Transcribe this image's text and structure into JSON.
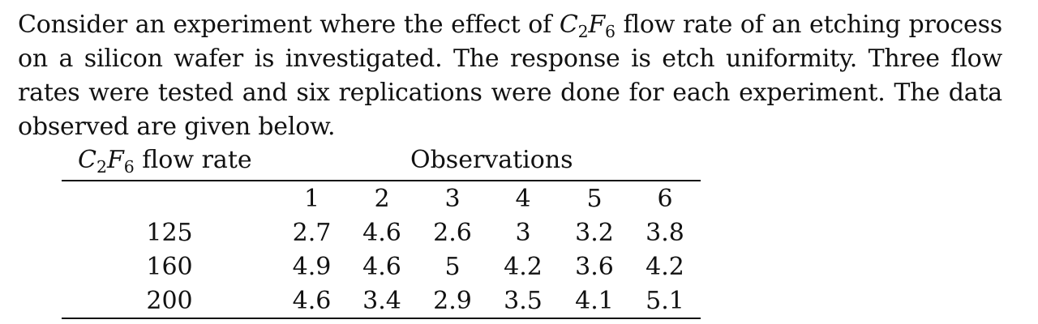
{
  "paragraph": {
    "line1_pre": "Consider an experiment where the effect of ",
    "chem_C": "C",
    "chem_C_sub": "2",
    "chem_F": "F",
    "chem_F_sub": "6",
    "line1_post": " flow rate of an etching process",
    "line2": "on a silicon wafer is investigated. The response is etch uniformity. Three flow",
    "line3": "rates were tested and six replications were done for each experiment. The data",
    "line4": "observed are given below."
  },
  "table": {
    "label_chem_C": "C",
    "label_chem_C_sub": "2",
    "label_chem_F": "F",
    "label_chem_F_sub": "6",
    "label_suffix": " flow rate",
    "observations_header": "Observations",
    "columns": [
      "1",
      "2",
      "3",
      "4",
      "5",
      "6"
    ],
    "rows": [
      {
        "rate": "125",
        "values": [
          "2.7",
          "4.6",
          "2.6",
          "3",
          "3.2",
          "3.8"
        ]
      },
      {
        "rate": "160",
        "values": [
          "4.9",
          "4.6",
          "5",
          "4.2",
          "3.6",
          "4.2"
        ]
      },
      {
        "rate": "200",
        "values": [
          "4.6",
          "3.4",
          "2.9",
          "3.5",
          "4.1",
          "5.1"
        ]
      }
    ]
  }
}
